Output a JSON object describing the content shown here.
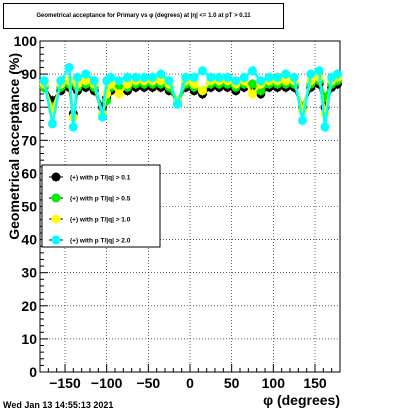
{
  "title": "Geometrical acceptance for Primary vs φ (degrees) at |η| <= 1.0 at pT > 0.11",
  "timestamp": "Wed Jan 13 14:55:13 2021",
  "chart_data": {
    "type": "scatter",
    "xlabel": "φ (degrees)",
    "ylabel": "Geometrical acceptance (%)",
    "xlim": [
      -180,
      180
    ],
    "ylim": [
      0,
      100
    ],
    "x_ticks": [
      -150,
      -100,
      -50,
      0,
      50,
      100,
      150
    ],
    "x_tick_labels": [
      "−150",
      "−100",
      "−50",
      "0",
      "50",
      "100",
      "150"
    ],
    "y_ticks": [
      0,
      10,
      20,
      30,
      40,
      50,
      60,
      70,
      80,
      90,
      100
    ],
    "y_tick_labels": [
      "0",
      "10",
      "20",
      "30",
      "40",
      "50",
      "60",
      "70",
      "80",
      "90",
      "100"
    ],
    "grid": true,
    "legend_position": "left-middle",
    "series": [
      {
        "name": "(+) with p T/|q| > 0.1",
        "color": "#000000",
        "x": [
          -175,
          -165,
          -155,
          -145,
          -140,
          -135,
          -125,
          -115,
          -105,
          -100,
          -95,
          -85,
          -75,
          -65,
          -55,
          -45,
          -35,
          -25,
          -15,
          -5,
          5,
          15,
          25,
          35,
          45,
          55,
          65,
          75,
          85,
          95,
          105,
          115,
          125,
          135,
          145,
          155,
          162,
          170,
          177
        ],
        "y": [
          86,
          82,
          85,
          86,
          78,
          85,
          86,
          85,
          80,
          83,
          85,
          85,
          85,
          86,
          86,
          86,
          86,
          85,
          82,
          86,
          85,
          84,
          86,
          86,
          86,
          85,
          86,
          86,
          84,
          86,
          86,
          86,
          86,
          80,
          86,
          87,
          80,
          86,
          87
        ]
      },
      {
        "name": "(+) with p T/|q| > 0.5",
        "color": "#00ee00",
        "x": [
          -175,
          -165,
          -155,
          -145,
          -140,
          -135,
          -125,
          -115,
          -105,
          -100,
          -95,
          -85,
          -75,
          -65,
          -55,
          -45,
          -35,
          -25,
          -15,
          -5,
          5,
          15,
          25,
          35,
          45,
          55,
          65,
          75,
          85,
          95,
          105,
          115,
          125,
          135,
          145,
          155,
          162,
          170,
          177
        ],
        "y": [
          86,
          80,
          86,
          87,
          77,
          86,
          87,
          86,
          78,
          82,
          86,
          86,
          86,
          87,
          87,
          87,
          87,
          86,
          81,
          87,
          86,
          85,
          87,
          87,
          87,
          86,
          87,
          87,
          85,
          87,
          87,
          87,
          87,
          80,
          87,
          88,
          83,
          87,
          88
        ]
      },
      {
        "name": "(+) with p T/|q| > 1.0",
        "color": "#ffff00",
        "x": [
          -175,
          -165,
          -155,
          -145,
          -140,
          -135,
          -125,
          -115,
          -105,
          -100,
          -95,
          -85,
          -75,
          -65,
          -55,
          -45,
          -35,
          -25,
          -15,
          -5,
          5,
          15,
          25,
          35,
          45,
          55,
          65,
          75,
          85,
          95,
          105,
          115,
          125,
          135,
          145,
          155,
          162,
          170,
          177
        ],
        "y": [
          87,
          79,
          87,
          88,
          77,
          87,
          88,
          87,
          78,
          84,
          87,
          84,
          87,
          88,
          88,
          88,
          88,
          87,
          82,
          88,
          87,
          85,
          88,
          88,
          88,
          87,
          88,
          84,
          87,
          88,
          88,
          88,
          88,
          79,
          88,
          89,
          78,
          88,
          89
        ]
      },
      {
        "name": "(+) with p T/|q| > 2.0",
        "color": "#00ffff",
        "x": [
          -175,
          -165,
          -155,
          -145,
          -140,
          -135,
          -125,
          -115,
          -105,
          -100,
          -95,
          -85,
          -75,
          -65,
          -55,
          -45,
          -35,
          -25,
          -15,
          -5,
          5,
          15,
          25,
          35,
          45,
          55,
          65,
          75,
          85,
          95,
          105,
          115,
          125,
          135,
          145,
          155,
          162,
          170,
          177
        ],
        "y": [
          88,
          75,
          88,
          92,
          74,
          89,
          90,
          88,
          77,
          88,
          89,
          88,
          89,
          89,
          89,
          89,
          90,
          88,
          81,
          89,
          89,
          91,
          89,
          89,
          89,
          88,
          89,
          91,
          88,
          89,
          89,
          90,
          89,
          76,
          90,
          91,
          74,
          89,
          90
        ]
      }
    ]
  }
}
